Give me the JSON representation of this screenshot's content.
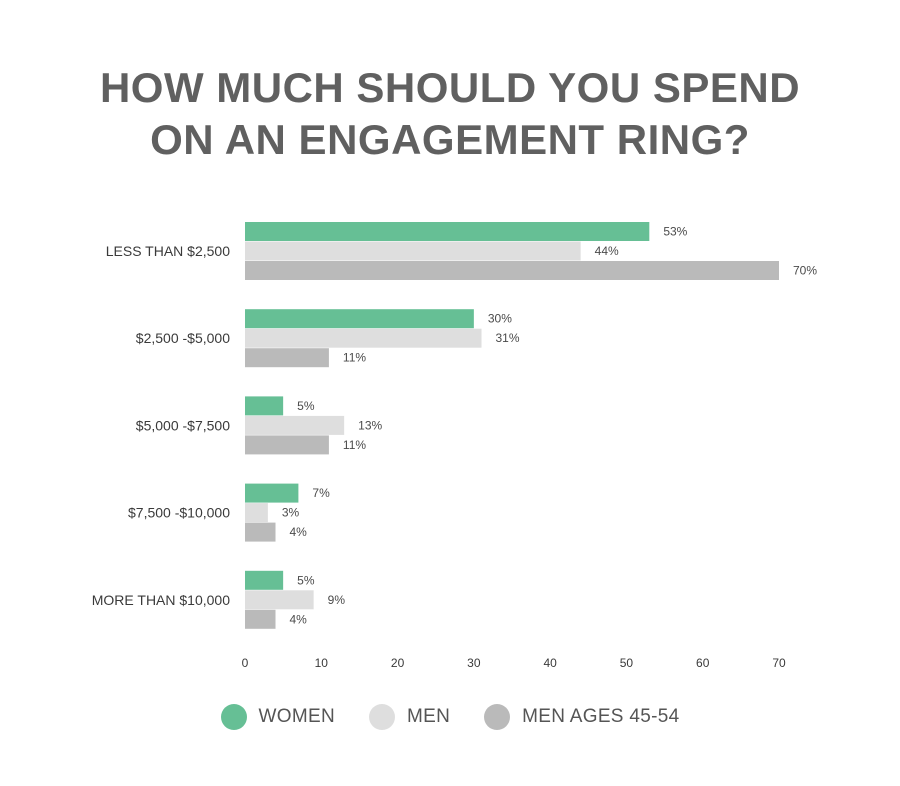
{
  "title_line1": "HOW MUCH SHOULD YOU SPEND",
  "title_line2": "ON AN ENGAGEMENT RING?",
  "chart_data": {
    "type": "bar",
    "orientation": "horizontal",
    "categories": [
      "LESS THAN $2,500",
      "$2,500 -$5,000",
      "$5,000 -$7,500",
      "$7,500 -$10,000",
      "MORE THAN $10,000"
    ],
    "series": [
      {
        "name": "WOMEN",
        "color": "#66bf95",
        "values": [
          53,
          30,
          5,
          7,
          5
        ],
        "labels": [
          "53%",
          "30%",
          "5%",
          "7%",
          "5%"
        ]
      },
      {
        "name": "MEN",
        "color": "#dedede",
        "values": [
          44,
          31,
          13,
          3,
          9
        ],
        "labels": [
          "44%",
          "31%",
          "13%",
          "3%",
          "9%"
        ]
      },
      {
        "name": "MEN AGES 45-54",
        "color": "#bababa",
        "values": [
          70,
          11,
          11,
          4,
          4
        ],
        "labels": [
          "70%",
          "11%",
          "11%",
          "4%",
          "4%"
        ]
      }
    ],
    "xlim": [
      0,
      70
    ],
    "xticks": [
      "0",
      "10",
      "20",
      "30",
      "40",
      "50",
      "60",
      "70"
    ],
    "grid": false,
    "legend_position": "bottom"
  }
}
